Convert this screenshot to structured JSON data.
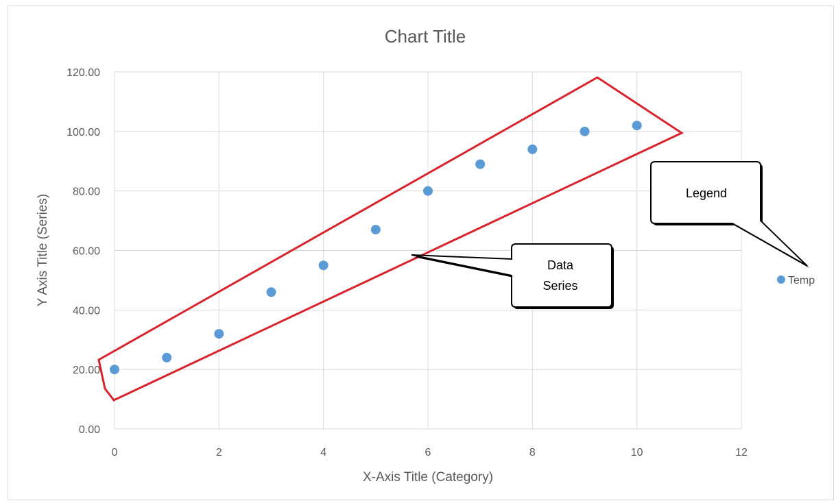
{
  "chart_data": {
    "type": "scatter",
    "title": "Chart Title",
    "xlabel": "X-Axis Title (Category)",
    "ylabel": "Y Axis Title (Series)",
    "xlim": [
      0,
      12
    ],
    "ylim": [
      0,
      120
    ],
    "x_ticks": [
      "0",
      "2",
      "4",
      "6",
      "8",
      "10",
      "12"
    ],
    "y_ticks": [
      "0.00",
      "20.00",
      "40.00",
      "60.00",
      "80.00",
      "100.00",
      "120.00"
    ],
    "grid": true,
    "legend_placement": "right",
    "series": [
      {
        "name": "Temp",
        "color": "#5b9bd5",
        "x": [
          0,
          1,
          2,
          3,
          4,
          5,
          6,
          7,
          8,
          9,
          10
        ],
        "y": [
          20,
          24,
          32,
          46,
          55,
          67,
          80,
          89,
          94,
          100,
          102
        ]
      }
    ],
    "annotations": [
      {
        "label": "Data Series",
        "lines": [
          "Data",
          "Series"
        ]
      },
      {
        "label": "Legend",
        "lines": [
          "Legend"
        ]
      }
    ],
    "highlight_color": "#d9232d"
  }
}
